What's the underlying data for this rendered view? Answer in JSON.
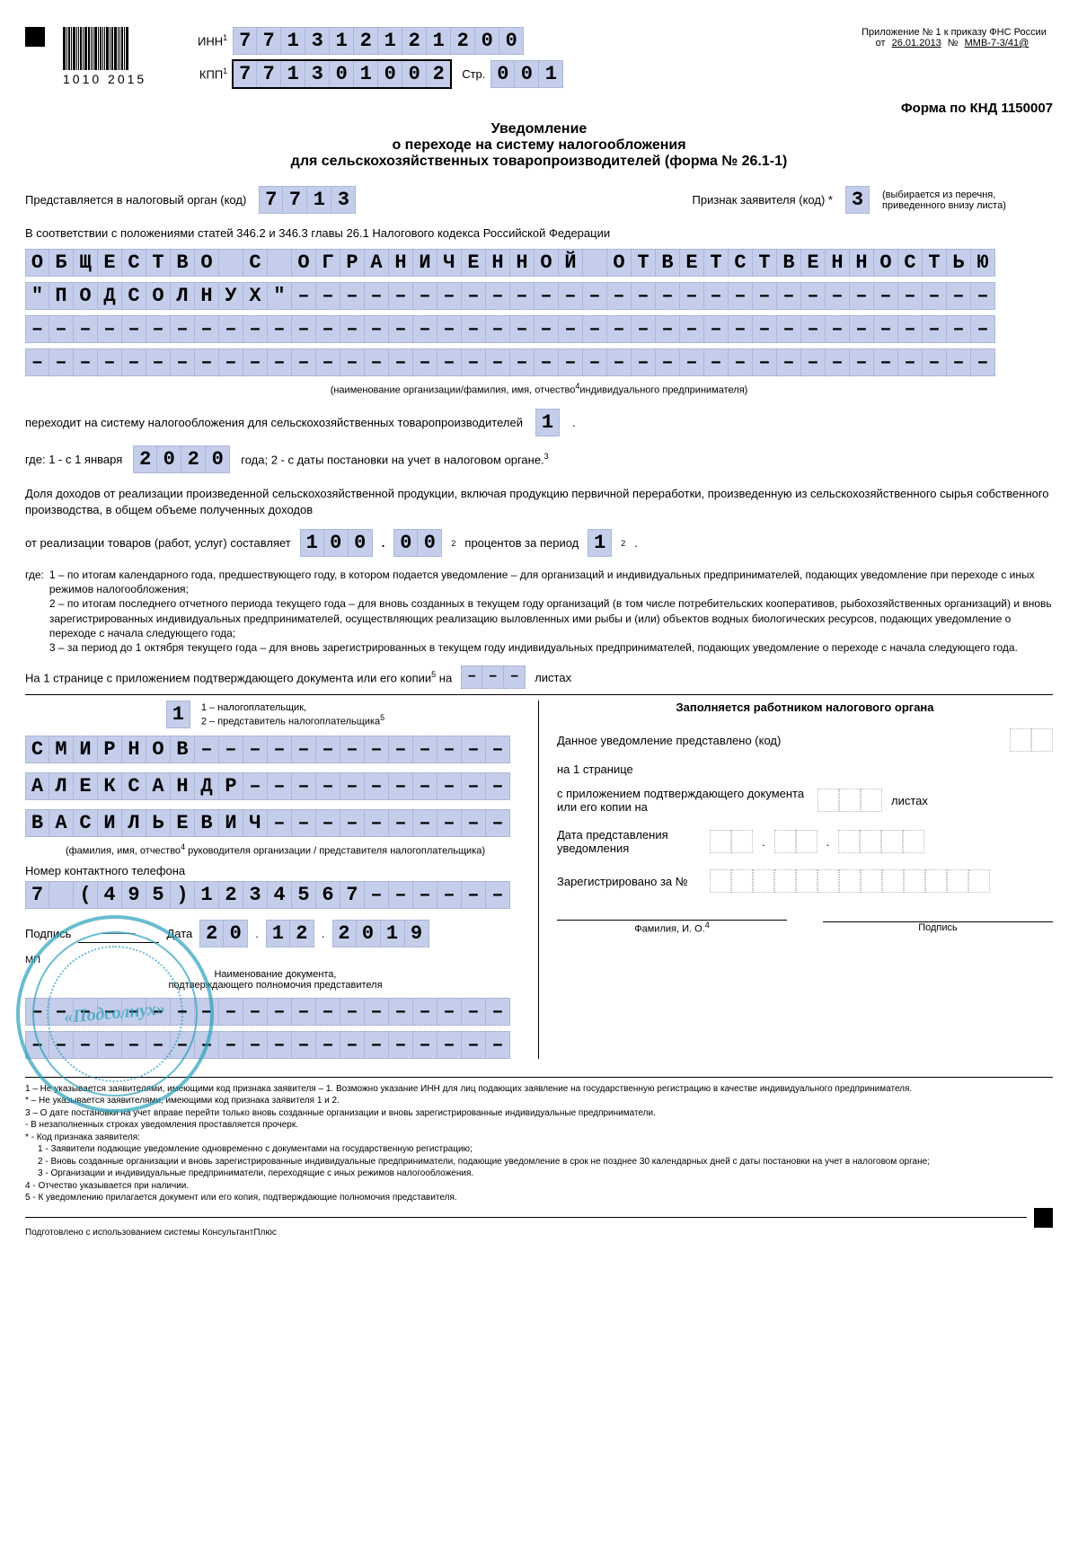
{
  "header": {
    "barcode_text": "1010  2015",
    "inn_label": "ИНН",
    "inn": [
      "7",
      "7",
      "1",
      "3",
      "1",
      "2",
      "1",
      "2",
      "1",
      "2",
      "0",
      "0"
    ],
    "kpp_label": "КПП",
    "kpp": [
      "7",
      "7",
      "1",
      "3",
      "0",
      "1",
      "0",
      "0",
      "2"
    ],
    "page_label": "Стр.",
    "page": [
      "0",
      "0",
      "1"
    ],
    "appendix": "Приложение № 1 к приказу ФНС России",
    "appendix_from": "от",
    "appendix_date": "26.01.2013",
    "appendix_num_label": "№",
    "appendix_num": "ММВ-7-3/41@",
    "form_code": "Форма по КНД 1150007"
  },
  "title": {
    "l1": "Уведомление",
    "l2": "о  переходе на систему налогообложения",
    "l3": "для сельскохозяйственных товаропроизводителей (форма № 26.1-1)"
  },
  "to_org": {
    "label": "Представляется в налоговый орган (код)",
    "code": [
      "7",
      "7",
      "1",
      "3"
    ],
    "sign_label": "Признак заявителя (код) *",
    "sign": "3",
    "sign_note": "(выбирается из перечня, приведенного внизу листа)"
  },
  "law_ref": "В соответствии с положениями статей 346.2 и 346.3 главы 26.1 Налогового кодекса Российской Федерации",
  "org_name": {
    "row1": [
      "О",
      "Б",
      "Щ",
      "Е",
      "С",
      "Т",
      "В",
      "О",
      "",
      "С",
      "",
      "О",
      "Г",
      "Р",
      "А",
      "Н",
      "И",
      "Ч",
      "Е",
      "Н",
      "Н",
      "О",
      "Й",
      "",
      "О",
      "Т",
      "В",
      "Е",
      "Т",
      "С",
      "Т",
      "В",
      "Е",
      "Н",
      "Н",
      "О",
      "С",
      "Т",
      "Ь",
      "Ю"
    ],
    "row2": [
      "\"",
      "П",
      "О",
      "Д",
      "С",
      "О",
      "Л",
      "Н",
      "У",
      "Х",
      "\"",
      "-",
      "-",
      "-",
      "-",
      "-",
      "-",
      "-",
      "-",
      "-",
      "-",
      "-",
      "-",
      "-",
      "-",
      "-",
      "-",
      "-",
      "-",
      "-",
      "-",
      "-",
      "-",
      "-",
      "-",
      "-",
      "-",
      "-",
      "-",
      "-"
    ],
    "row3_dashes": 40,
    "row4_dashes": 40,
    "caption": "(наименование организации/фамилия, имя, отчество",
    "caption2": "индивидуального предпринимателя)"
  },
  "transition": {
    "text": "переходит на систему налогообложения для сельскохозяйственных товаропроизводителей",
    "code": "1",
    "where": "где:  1 - с 1 января",
    "year": [
      "2",
      "0",
      "2",
      "0"
    ],
    "where2": "года;    2 - с даты постановки на  учет в налоговом органе."
  },
  "income": {
    "p1": "Доля доходов от реализации произведенной сельскохозяйственной продукции, включая продукцию первичной переработки, произведенную из сельскохозяйственного сырья собственного производства, в общем объеме полученных доходов",
    "p2a": "от реализации товаров (работ, услуг) составляет",
    "pct_int": [
      "1",
      "0",
      "0"
    ],
    "pct_dec": [
      "0",
      "0"
    ],
    "p2b": "процентов  за период",
    "period": "1"
  },
  "where_notes": {
    "n1": "1 – по итогам календарного года, предшествующего году, в котором подается уведомление – для организаций и индивидуальных предпринимателей, подающих уведомление при переходе с иных режимов налогообложения;",
    "n2": "2 – по итогам последнего отчетного периода текущего года – для вновь созданных в текущем году организаций (в том числе потребительских кооперативов, рыбохозяйственных организаций) и вновь зарегистрированных индивидуальных предпринимателей, осуществляющих реализацию выловленных ими рыбы и (или) объектов водных биологических ресурсов, подающих уведомление о переходе с начала следующего года;",
    "n3": "3 – за период до 1 октября текущего года – для вновь зарегистрированных в текущем году индивидуальных предпринимателей, подающих уведомление о переходе с начала следующего года."
  },
  "pages_line": {
    "a": "На 1 странице с приложением подтверждающего документа или его копии",
    "b": "на",
    "c": "листах"
  },
  "left": {
    "type": "1",
    "type_note": "1 – налогоплательщик,\n2 – представитель налогоплательщика",
    "name1": [
      "С",
      "М",
      "И",
      "Р",
      "Н",
      "О",
      "В",
      "-",
      "-",
      "-",
      "-",
      "-",
      "-",
      "-",
      "-",
      "-",
      "-",
      "-",
      "-",
      "-"
    ],
    "name2": [
      "А",
      "Л",
      "Е",
      "К",
      "С",
      "А",
      "Н",
      "Д",
      "Р",
      "-",
      "-",
      "-",
      "-",
      "-",
      "-",
      "-",
      "-",
      "-",
      "-",
      "-"
    ],
    "name3": [
      "В",
      "А",
      "С",
      "И",
      "Л",
      "Ь",
      "Е",
      "В",
      "И",
      "Ч",
      "-",
      "-",
      "-",
      "-",
      "-",
      "-",
      "-",
      "-",
      "-",
      "-"
    ],
    "name_caption": "(фамилия, имя, отчество",
    "name_caption2": " руководителя организации / представителя налогоплательщика)",
    "phone_label": "Номер контактного телефона",
    "phone": [
      "7",
      "",
      "(",
      "4",
      "9",
      "5",
      ")",
      "1",
      "2",
      "3",
      "4",
      "5",
      "6",
      "7",
      "-",
      "-",
      "-",
      "-",
      "-",
      "-"
    ],
    "sign_label": "Подпись",
    "date_label": "Дата",
    "date_d": [
      "2",
      "0"
    ],
    "date_m": [
      "1",
      "2"
    ],
    "date_y": [
      "2",
      "0",
      "1",
      "9"
    ],
    "mp": "МП",
    "doc_caption1": "Наименование документа,",
    "doc_caption2": "подтверждающего полномочия представителя",
    "stamp": "«Подсолнух»"
  },
  "right": {
    "title": "Заполняется работником налогового органа",
    "l1": "Данное уведомление представлено (код)",
    "l2": "на 1 странице",
    "l3": "с приложением подтверждающего документа или его копии на",
    "l3b": "листах",
    "l4": "Дата представления уведомления",
    "l5": "Зарегистрировано за №",
    "fio": "Фамилия, И. О.",
    "sign": "Подпись"
  },
  "footnotes": {
    "f1": "1 – Не указывается заявителями, имеющими код признака заявителя – 1. Возможно указание ИНН для лиц подающих заявление на государственную регистрацию в качестве индивидуального предпринимателя.",
    "f2star": "* – Не указывается заявителями, имеющими код признака заявителя 1 и 2.",
    "f3": "3 – О дате постановки на учет вправе перейти только вновь созданные организации и вновь зарегистрированные индивидуальные предприниматели.",
    "f3a": "- В незаполненных строках уведомления проставляется прочерк.",
    "f3b": "* - Код признака заявителя:",
    "f3b1": "1 - Заявители подающие уведомление одновременно с документами на государственную регистрацию;",
    "f3b2": "2 - Вновь созданные организации и вновь зарегистрированные индивидуальные предприниматели, подающие уведомление в срок не позднее 30 календарных дней с даты постановки на учет в налоговом органе;",
    "f3b3": "3 - Организации и индивидуальные предприниматели, переходящие с иных режимов налогообложения.",
    "f4": "4 - Отчество указывается при наличии.",
    "f5": "5 - К уведомлению прилагается документ или его копия, подтверждающие  полномочия представителя."
  },
  "footer": "Подготовлено с использованием системы КонсультантПлюс"
}
